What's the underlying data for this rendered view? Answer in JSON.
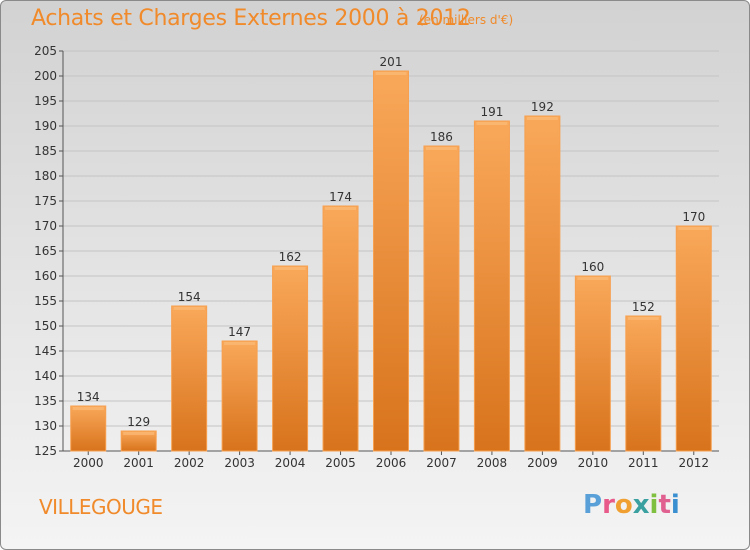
{
  "title": "Achats et Charges Externes 2000 à 2012",
  "subtitle": "(en milliers d'€)",
  "town": "VILLEGOUGE",
  "logo": {
    "letters": [
      "P",
      "r",
      "o",
      "x",
      "i",
      "t",
      "i"
    ],
    "colors": [
      "#5aa0d8",
      "#e85a8a",
      "#f0a030",
      "#3aa0a0",
      "#80c040",
      "#e06090",
      "#3a8fd0"
    ]
  },
  "colors": {
    "bar": "#f08a2a",
    "bar_light": "#f9aa5a",
    "title": "#f08a2a"
  },
  "chart_data": {
    "type": "bar",
    "categories": [
      "2000",
      "2001",
      "2002",
      "2003",
      "2004",
      "2005",
      "2006",
      "2007",
      "2008",
      "2009",
      "2010",
      "2011",
      "2012"
    ],
    "values": [
      134,
      129,
      154,
      147,
      162,
      174,
      201,
      186,
      191,
      192,
      160,
      152,
      170
    ],
    "ylim": [
      125,
      205
    ],
    "yticks": [
      125,
      130,
      135,
      140,
      145,
      150,
      155,
      160,
      165,
      170,
      175,
      180,
      185,
      190,
      195,
      200,
      205
    ],
    "grid": true
  }
}
